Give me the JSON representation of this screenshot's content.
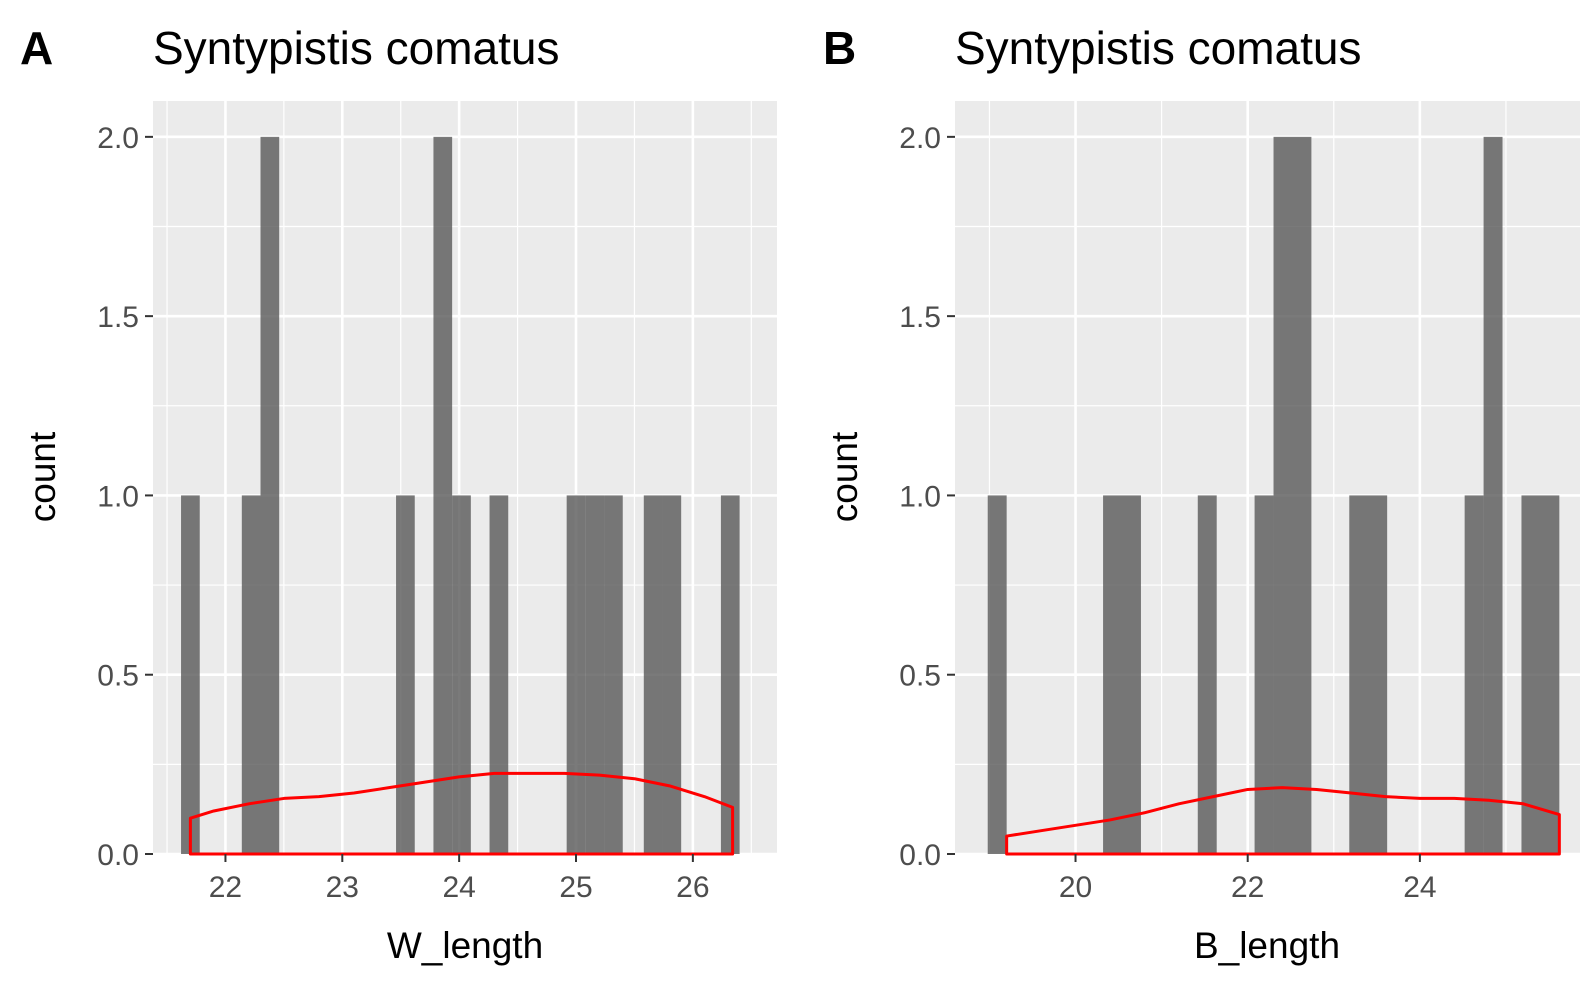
{
  "chart_data": [
    {
      "type": "bar",
      "panel_tag": "A",
      "title": "Syntypistis comatus",
      "xlabel": "W_length",
      "ylabel": "count",
      "xlim": [
        21.38,
        26.72
      ],
      "ylim": [
        0,
        2.1
      ],
      "xticks": [
        22,
        23,
        24,
        25,
        26
      ],
      "xtick_labels": [
        "22",
        "23",
        "24",
        "25",
        "26"
      ],
      "yticks": [
        0,
        0.5,
        1,
        1.5,
        2
      ],
      "ytick_labels": [
        "0.0",
        "0.5",
        "1.0",
        "1.5",
        "2.0"
      ],
      "grid": true,
      "bar_color": "#595959",
      "bars": [
        {
          "x0": 21.62,
          "x1": 21.78,
          "count": 1
        },
        {
          "x0": 22.14,
          "x1": 22.3,
          "count": 1
        },
        {
          "x0": 22.3,
          "x1": 22.46,
          "count": 2
        },
        {
          "x0": 23.46,
          "x1": 23.62,
          "count": 1
        },
        {
          "x0": 23.78,
          "x1": 23.94,
          "count": 2
        },
        {
          "x0": 23.94,
          "x1": 24.1,
          "count": 1
        },
        {
          "x0": 24.26,
          "x1": 24.42,
          "count": 1
        },
        {
          "x0": 24.92,
          "x1": 25.08,
          "count": 1
        },
        {
          "x0": 25.08,
          "x1": 25.24,
          "count": 1
        },
        {
          "x0": 25.24,
          "x1": 25.4,
          "count": 1
        },
        {
          "x0": 25.58,
          "x1": 25.74,
          "count": 1
        },
        {
          "x0": 25.74,
          "x1": 25.9,
          "count": 1
        },
        {
          "x0": 26.24,
          "x1": 26.4,
          "count": 1
        }
      ],
      "density_color": "#ff0000",
      "density": {
        "x": [
          21.7,
          21.9,
          22.2,
          22.5,
          22.8,
          23.1,
          23.4,
          23.7,
          24.0,
          24.3,
          24.6,
          24.9,
          25.2,
          25.5,
          25.8,
          26.1,
          26.34
        ],
        "y": [
          0.1,
          0.12,
          0.14,
          0.155,
          0.16,
          0.17,
          0.185,
          0.2,
          0.215,
          0.225,
          0.225,
          0.225,
          0.22,
          0.21,
          0.19,
          0.16,
          0.13
        ]
      }
    },
    {
      "type": "bar",
      "panel_tag": "B",
      "title": "Syntypistis comatus",
      "xlabel": "B_length",
      "ylabel": "count",
      "xlim": [
        18.6,
        25.86
      ],
      "ylim": [
        0,
        2.1
      ],
      "xticks": [
        20,
        22,
        24
      ],
      "xtick_labels": [
        "20",
        "22",
        "24"
      ],
      "yticks": [
        0,
        0.5,
        1,
        1.5,
        2
      ],
      "ytick_labels": [
        "0.0",
        "0.5",
        "1.0",
        "1.5",
        "2.0"
      ],
      "grid": true,
      "bar_color": "#595959",
      "bars": [
        {
          "x0": 18.98,
          "x1": 19.2,
          "count": 1
        },
        {
          "x0": 20.32,
          "x1": 20.76,
          "count": 1
        },
        {
          "x0": 21.42,
          "x1": 21.64,
          "count": 1
        },
        {
          "x0": 22.08,
          "x1": 22.3,
          "count": 1
        },
        {
          "x0": 22.3,
          "x1": 22.74,
          "count": 2
        },
        {
          "x0": 23.18,
          "x1": 23.62,
          "count": 1
        },
        {
          "x0": 24.52,
          "x1": 24.74,
          "count": 1
        },
        {
          "x0": 24.74,
          "x1": 24.96,
          "count": 2
        },
        {
          "x0": 25.18,
          "x1": 25.62,
          "count": 1
        }
      ],
      "density_color": "#ff0000",
      "density": {
        "x": [
          19.2,
          19.6,
          20.0,
          20.4,
          20.8,
          21.2,
          21.6,
          22.0,
          22.4,
          22.8,
          23.2,
          23.6,
          24.0,
          24.4,
          24.8,
          25.2,
          25.62
        ],
        "y": [
          0.05,
          0.065,
          0.08,
          0.095,
          0.115,
          0.14,
          0.16,
          0.18,
          0.185,
          0.18,
          0.17,
          0.16,
          0.155,
          0.155,
          0.15,
          0.14,
          0.11
        ]
      }
    }
  ]
}
